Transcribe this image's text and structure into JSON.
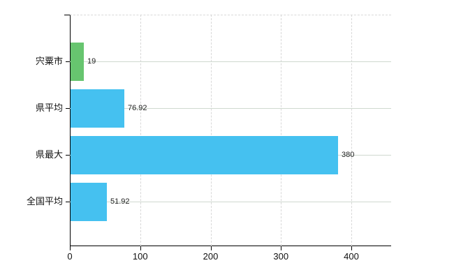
{
  "chart_data": {
    "type": "bar",
    "orientation": "horizontal",
    "title": "",
    "xlabel": "",
    "ylabel": "",
    "categories": [
      "宍粟市",
      "県平均",
      "県最大",
      "全国平均"
    ],
    "values": [
      19,
      76.92,
      380,
      51.92
    ],
    "value_labels": [
      "19",
      "76.92",
      "380",
      "51.92"
    ],
    "bar_colors": [
      "#67c56f",
      "#45c1f0",
      "#45c1f0",
      "#45c1f0"
    ],
    "x_ticks": [
      0,
      100,
      200,
      300,
      400
    ],
    "x_tick_labels": [
      "0",
      "100",
      "200",
      "300",
      "400"
    ],
    "xlim": [
      0,
      457
    ],
    "grid": true,
    "legend": null
  },
  "colors": {
    "background": "#ffffff",
    "bar_green": "#67c56f",
    "bar_blue": "#45c1f0",
    "axis": "#000000",
    "h_gridline": "#cfd9cf",
    "v_gridline": "#d8d8d8",
    "top_border": "#d9d9d9",
    "text": "#111111"
  }
}
